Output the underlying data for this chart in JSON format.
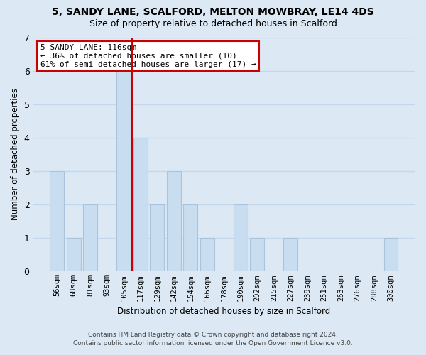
{
  "title1": "5, SANDY LANE, SCALFORD, MELTON MOWBRAY, LE14 4DS",
  "title2": "Size of property relative to detached houses in Scalford",
  "xlabel": "Distribution of detached houses by size in Scalford",
  "ylabel": "Number of detached properties",
  "bins": [
    "56sqm",
    "68sqm",
    "81sqm",
    "93sqm",
    "105sqm",
    "117sqm",
    "129sqm",
    "142sqm",
    "154sqm",
    "166sqm",
    "178sqm",
    "190sqm",
    "202sqm",
    "215sqm",
    "227sqm",
    "239sqm",
    "251sqm",
    "263sqm",
    "276sqm",
    "288sqm",
    "300sqm"
  ],
  "heights": [
    3,
    1,
    2,
    0,
    6,
    4,
    2,
    3,
    2,
    1,
    0,
    2,
    1,
    0,
    1,
    0,
    0,
    0,
    0,
    0,
    1
  ],
  "bar_color": "#c8ddef",
  "bar_edge_color": "#aac4de",
  "grid_color": "#c5d8eb",
  "bg_color": "#dce9f5",
  "red_line_bin_index": 5,
  "red_line_color": "#cc0000",
  "annotation_line1": "5 SANDY LANE: 116sqm",
  "annotation_line2": "← 36% of detached houses are smaller (10)",
  "annotation_line3": "61% of semi-detached houses are larger (17) →",
  "annotation_box_color": "#ffffff",
  "annotation_edge_color": "#cc0000",
  "ylim": [
    0,
    7
  ],
  "yticks": [
    0,
    1,
    2,
    3,
    4,
    5,
    6,
    7
  ],
  "footnote1": "Contains HM Land Registry data © Crown copyright and database right 2024.",
  "footnote2": "Contains public sector information licensed under the Open Government Licence v3.0."
}
